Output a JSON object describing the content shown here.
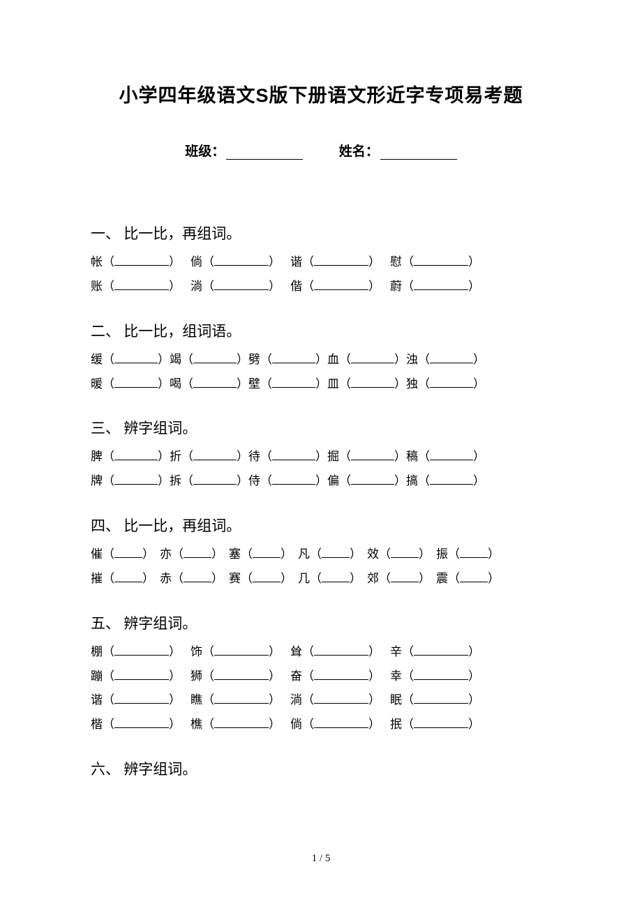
{
  "title": "小学四年级语文S版下册语文形近字专项易考题",
  "meta": {
    "class_label": "班级：",
    "name_label": "姓名："
  },
  "sections": [
    {
      "num": "一、",
      "heading": "比一比，再组词。",
      "style": "paren",
      "blank_width": 78,
      "gap": 14,
      "rows": [
        [
          "帐",
          "倘",
          "谐",
          "慰"
        ],
        [
          "账",
          "淌",
          "偕",
          "蔚"
        ]
      ]
    },
    {
      "num": "二、",
      "heading": "比一比，组词语。",
      "style": "paren",
      "blank_width": 62,
      "gap": 0,
      "rows": [
        [
          "缓",
          "竭",
          "劈",
          "血",
          "浊"
        ],
        [
          "暖",
          "喝",
          "壁",
          "皿",
          "独"
        ]
      ]
    },
    {
      "num": "三、",
      "heading": "辨字组词。",
      "style": "paren",
      "blank_width": 62,
      "gap": 0,
      "rows": [
        [
          "脾",
          "折",
          "待",
          "掘",
          "稿"
        ],
        [
          "牌",
          "拆",
          "侍",
          "偏",
          "搞"
        ]
      ]
    },
    {
      "num": "四、",
      "heading": "比一比，再组词。",
      "style": "paren",
      "blank_width": 40,
      "gap": 8,
      "rows": [
        [
          "催",
          "亦",
          "塞",
          "凡",
          "效",
          "振"
        ],
        [
          "摧",
          "赤",
          "赛",
          "几",
          "郊",
          "震"
        ]
      ]
    },
    {
      "num": "五、",
      "heading": "辨字组词。",
      "style": "paren",
      "blank_width": 78,
      "gap": 14,
      "rows": [
        [
          "棚",
          "饰",
          "耸",
          "辛"
        ],
        [
          "蹦",
          "狮",
          "奋",
          "幸"
        ],
        [
          "谐",
          "瞧",
          "淌",
          "眠"
        ],
        [
          "楷",
          "樵",
          "倘",
          "抿"
        ]
      ]
    },
    {
      "num": "六、",
      "heading": "辨字组词。",
      "style": "paren",
      "blank_width": 78,
      "gap": 14,
      "rows": []
    }
  ],
  "page_number": "1 / 5",
  "colors": {
    "text": "#000000",
    "background": "#ffffff"
  },
  "fonts": {
    "title_family": "SimHei",
    "body_family": "SimSun",
    "title_size_pt": 20,
    "heading_size_pt": 16,
    "body_size_pt": 13
  }
}
